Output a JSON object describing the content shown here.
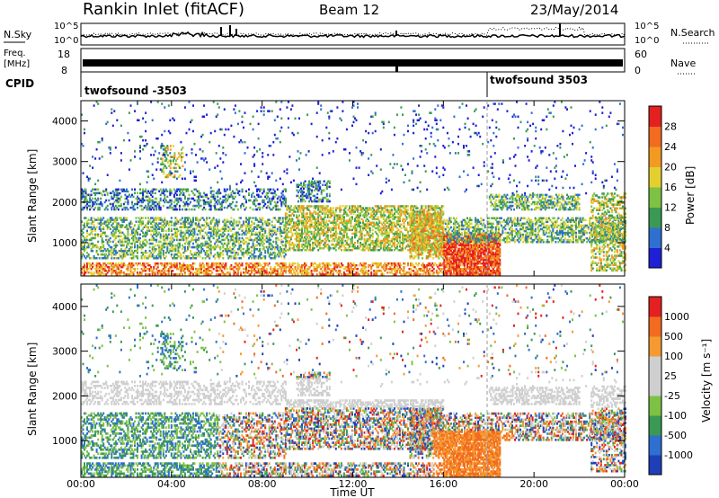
{
  "header": {
    "station": "Rankin Inlet (fitACF)",
    "beam": "Beam 12",
    "date": "23/May/2014"
  },
  "top_panels": {
    "nsky_label": "N.Sky",
    "nsearch_label": "N.Search",
    "noise_ticks_left": [
      "10^5",
      "10^0"
    ],
    "noise_ticks_right": [
      "10^5",
      "10^0"
    ],
    "freq_label_1": "Freq.",
    "freq_label_2": "[MHz]",
    "freq_ticks": [
      "18",
      "8"
    ],
    "nave_label": "Nave",
    "nave_ticks": [
      "60",
      "0"
    ],
    "cpid_label": "CPID",
    "cpid_entries": [
      {
        "name": "twofsound -3503",
        "start_time": "00:00"
      },
      {
        "name": "twofsound 3503",
        "start_time": "18:00"
      }
    ]
  },
  "xaxis": {
    "title": "Time UT",
    "ticks": [
      "00:00",
      "04:00",
      "08:00",
      "12:00",
      "16:00",
      "20:00",
      "00:00"
    ]
  },
  "colors": {
    "power": [
      "#1f1fd6",
      "#2e6fd0",
      "#3a9a55",
      "#7ec243",
      "#e3d02e",
      "#f39a22",
      "#f26b20",
      "#e52020"
    ],
    "velocity": [
      "#e52020",
      "#f26b20",
      "#f59a30",
      "#cfcfcf",
      "#cfcfcf",
      "#7ec243",
      "#3a9a55",
      "#2e6fd0",
      "#1f3fb8"
    ]
  },
  "chart_data": [
    {
      "type": "heatmap",
      "name": "power",
      "xlabel": "Time UT",
      "ylabel": "Slant Range [km]",
      "yticks": [
        "1000",
        "2000",
        "3000",
        "4000"
      ],
      "xlim": [
        0,
        24
      ],
      "ylim": [
        180,
        4500
      ],
      "colorbar_label": "Power [dB]",
      "colorbar_ticks": [
        "4",
        "8",
        "12",
        "16",
        "20",
        "24",
        "28"
      ],
      "colorbar_range": [
        0,
        32
      ]
    },
    {
      "type": "heatmap",
      "name": "velocity",
      "xlabel": "Time UT",
      "ylabel": "Slant Range [km]",
      "yticks": [
        "1000",
        "2000",
        "3000",
        "4000"
      ],
      "xlim": [
        0,
        24
      ],
      "ylim": [
        180,
        4500
      ],
      "colorbar_label": "Velocity [m s⁻¹]",
      "colorbar_ticks": [
        "1000",
        "500",
        "100",
        "25",
        "-25",
        "-100",
        "-500",
        "-1000"
      ]
    }
  ]
}
